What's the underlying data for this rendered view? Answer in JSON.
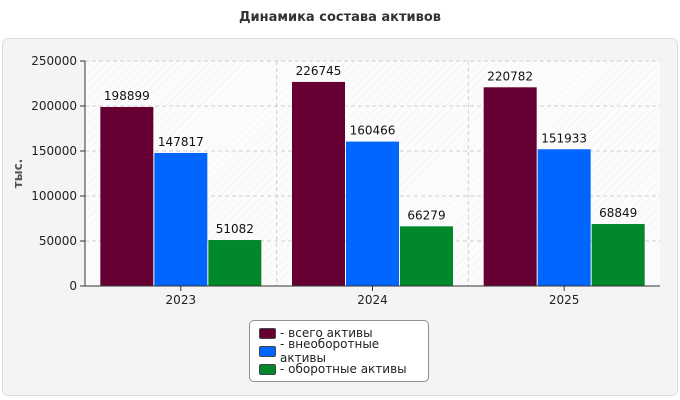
{
  "chart_data": {
    "type": "bar",
    "title": "Динамика состава активов",
    "ylabel": "тыс.",
    "xlabel": "",
    "categories": [
      "2023",
      "2024",
      "2025"
    ],
    "ylim": [
      0,
      250000
    ],
    "yticks": [
      0,
      50000,
      100000,
      150000,
      200000,
      250000
    ],
    "grid": true,
    "legend_position": "bottom-center",
    "series": [
      {
        "name": "- всего активы",
        "color": "#660033",
        "values": [
          198899,
          226745,
          220782
        ]
      },
      {
        "name": "- внеоборотные активы",
        "color": "#0066ff",
        "values": [
          147817,
          160466,
          151933
        ]
      },
      {
        "name": "- оборотные активы",
        "color": "#00882b",
        "values": [
          51082,
          66279,
          68849
        ]
      }
    ]
  }
}
